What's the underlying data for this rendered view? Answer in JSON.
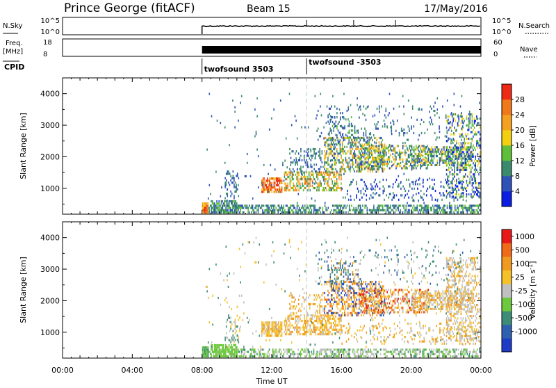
{
  "header": {
    "station": "Prince George (fitACF)",
    "beam": "Beam 15",
    "date": "17/May/2016"
  },
  "nsky_panel": {
    "left_label": "N.Sky",
    "left_ticks": [
      "10^5",
      "10^0"
    ],
    "right_ticks": [
      "10^5",
      "10^0"
    ],
    "right_label": "N.Search"
  },
  "freq_panel": {
    "left_label_line1": "Freq.",
    "left_label_line2": "[MHz]",
    "left_ticks": [
      "18",
      "8"
    ],
    "right_ticks": [
      "60",
      "0"
    ],
    "right_label": "Nave"
  },
  "cpid": {
    "label": "CPID",
    "entries": [
      {
        "start_hour": 8.0,
        "text": "twofsound 3503"
      },
      {
        "start_hour": 14.0,
        "text": "twofsound -3503"
      }
    ]
  },
  "chart_data": [
    {
      "type": "heatmap",
      "name": "power",
      "ylabel": "Slant Range [km]",
      "ylim": [
        180,
        4500
      ],
      "yticks": [
        1000,
        2000,
        3000,
        4000
      ],
      "xlim": [
        0,
        24
      ],
      "data_start_hour": 8.0,
      "colorbar": {
        "label": "Power [dB]",
        "levels": [
          "4",
          "8",
          "12",
          "16",
          "20",
          "24",
          "28"
        ],
        "colors": [
          "#0a1de0",
          "#2e52b8",
          "#3b8a6e",
          "#5fbf3a",
          "#f2cf10",
          "#f5a020",
          "#f07818",
          "#ee2a16"
        ]
      }
    },
    {
      "type": "heatmap",
      "name": "velocity",
      "ylabel": "Slant Range [km]",
      "ylim": [
        180,
        4500
      ],
      "yticks": [
        1000,
        2000,
        3000,
        4000
      ],
      "xlim": [
        0,
        24
      ],
      "data_start_hour": 8.0,
      "colorbar": {
        "label": "Velocity [m s",
        "label_sup": "-1",
        "label_end": "]",
        "levels": [
          "1000",
          "500",
          "100",
          "25",
          "-25",
          "-100",
          "-500",
          "-1000"
        ],
        "colors": [
          "#1e3cc8",
          "#2f60b0",
          "#3c8c78",
          "#6cc83c",
          "#c0c0c0",
          "#f5c028",
          "#f09a20",
          "#f06a18",
          "#e81818"
        ]
      }
    }
  ],
  "x_axis": {
    "label": "Time UT",
    "ticks": [
      "00:00",
      "04:00",
      "08:00",
      "12:00",
      "16:00",
      "20:00",
      "00:00"
    ]
  }
}
